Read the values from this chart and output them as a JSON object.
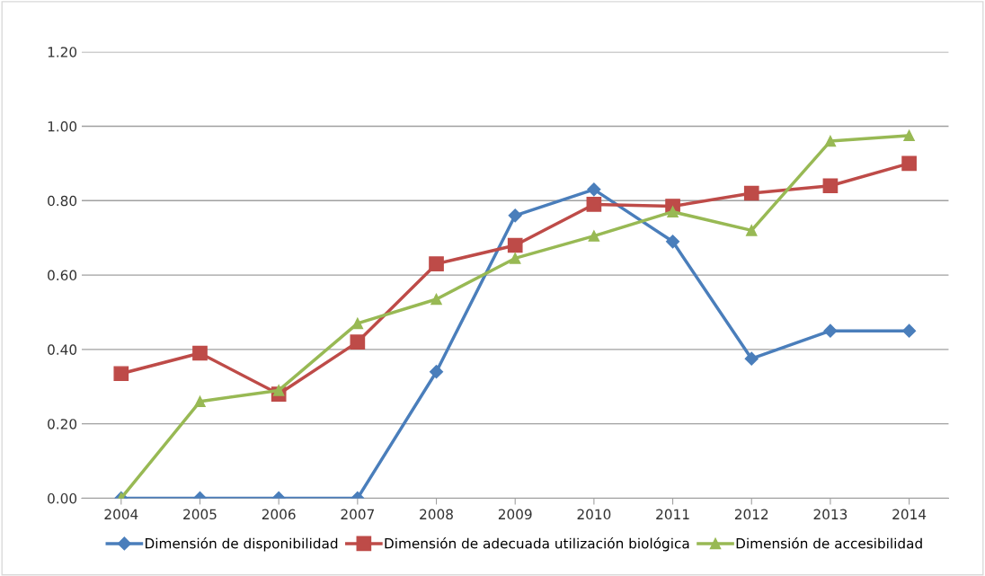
{
  "chart_data": {
    "type": "line",
    "categories": [
      "2004",
      "2005",
      "2006",
      "2007",
      "2008",
      "2009",
      "2010",
      "2011",
      "2012",
      "2013",
      "2014"
    ],
    "series": [
      {
        "name": "Dimensión de disponibilidad",
        "color": "#4a7ebb",
        "marker": "diamond",
        "values": [
          0,
          0,
          0,
          0,
          0.34,
          0.76,
          0.83,
          0.69,
          0.375,
          0.45,
          0.45
        ]
      },
      {
        "name": "Dimensión de adecuada utilización biológica",
        "color": "#be4b48",
        "marker": "square",
        "values": [
          0.335,
          0.39,
          0.28,
          0.42,
          0.63,
          0.68,
          0.79,
          0.785,
          0.82,
          0.84,
          0.9
        ]
      },
      {
        "name": "Dimensión de accesibilidad",
        "color": "#98b954",
        "marker": "triangle",
        "values": [
          0,
          0.26,
          0.29,
          0.47,
          0.535,
          0.645,
          0.705,
          0.77,
          0.72,
          0.96,
          0.975
        ]
      }
    ],
    "ylim": [
      0,
      1.2
    ],
    "yticks": [
      {
        "value": 0,
        "label": "0.00"
      },
      {
        "value": 0.2,
        "label": "0.20"
      },
      {
        "value": 0.4,
        "label": "0.40"
      },
      {
        "value": 0.6,
        "label": "0.60"
      },
      {
        "value": 0.8,
        "label": "0.80"
      },
      {
        "value": 1.0,
        "label": "1.00"
      },
      {
        "value": 1.2,
        "label": "1.20"
      }
    ],
    "grid": "y",
    "legend": "bottom",
    "line_style": "solid"
  }
}
